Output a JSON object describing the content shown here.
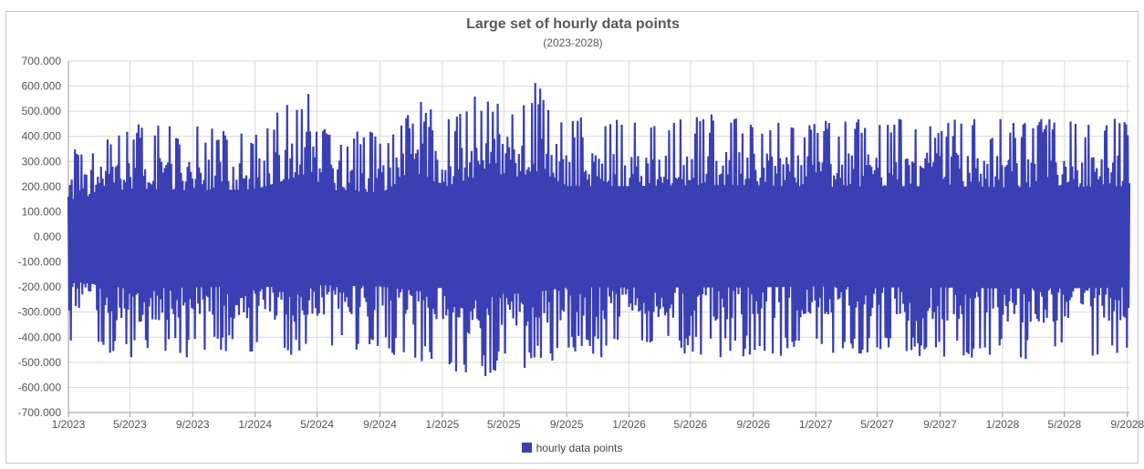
{
  "chart_data": {
    "type": "line",
    "title": "Large set of hourly data points",
    "subtitle": "(2023-2028)",
    "xlabel": "",
    "ylabel": "",
    "ylim": [
      -700,
      700
    ],
    "y_ticks": [
      "700.000",
      "600.000",
      "500.000",
      "400.000",
      "300.000",
      "200.000",
      "100.000",
      "0.000",
      "-100.000",
      "-200.000",
      "-300.000",
      "-400.000",
      "-500.000",
      "-600.000",
      "-700.000"
    ],
    "x_range": [
      "2023-01-01",
      "2028-09-05"
    ],
    "x_ticks": [
      "1/2023",
      "5/2023",
      "9/2023",
      "1/2024",
      "5/2024",
      "9/2024",
      "1/2025",
      "5/2025",
      "9/2025",
      "1/2026",
      "5/2026",
      "9/2026",
      "1/2027",
      "5/2027",
      "9/2027",
      "1/2028",
      "5/2028",
      "9/2028"
    ],
    "grid": true,
    "legend": "bottom-center",
    "series": [
      {
        "name": "hourly data points",
        "color": "#3a3fb4",
        "envelope_x": [
          "2023-01-01",
          "2023-05-01",
          "2023-09-01",
          "2024-01-01",
          "2024-04-24",
          "2024-05-01",
          "2024-09-01",
          "2024-11-20",
          "2025-01-01",
          "2025-03-01",
          "2025-04-15",
          "2025-06-01",
          "2025-07-10",
          "2025-09-01",
          "2026-01-01",
          "2026-05-01",
          "2026-09-01",
          "2027-01-01",
          "2027-05-01",
          "2027-09-01",
          "2028-01-01",
          "2028-05-01",
          "2028-09-05"
        ],
        "envelope_max": [
          350,
          460,
          440,
          450,
          620,
          450,
          420,
          560,
          470,
          560,
          600,
          570,
          630,
          480,
          480,
          490,
          490,
          470,
          480,
          480,
          470,
          470,
          480
        ],
        "envelope_min": [
          -420,
          -490,
          -480,
          -470,
          -490,
          -460,
          -470,
          -520,
          -480,
          -610,
          -540,
          -540,
          -520,
          -480,
          -480,
          -480,
          -480,
          -470,
          -480,
          -480,
          -490,
          -490,
          -480
        ]
      }
    ]
  }
}
